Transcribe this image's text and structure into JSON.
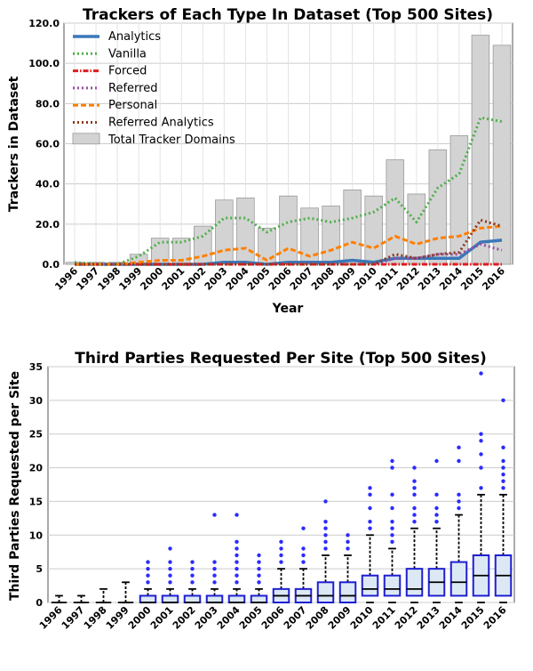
{
  "chart_data": [
    {
      "type": "bar",
      "title": "Trackers of Each Type In Dataset (Top 500 Sites)",
      "xlabel": "Year",
      "ylabel": "Trackers in Dataset",
      "ylim": [
        0,
        120
      ],
      "yticks": [
        "0.0",
        "20.0",
        "40.0",
        "60.0",
        "80.0",
        "100.0",
        "120.0"
      ],
      "categories": [
        "1996",
        "1997",
        "1998",
        "1999",
        "2000",
        "2001",
        "2002",
        "2003",
        "2004",
        "2005",
        "2006",
        "2007",
        "2008",
        "2009",
        "2010",
        "2011",
        "2012",
        "2013",
        "2014",
        "2015",
        "2016"
      ],
      "grid": true,
      "legend_position": "top-left",
      "bars": {
        "name": "Total Tracker Domains",
        "color": "#d3d3d3",
        "values": [
          1,
          1,
          1,
          5,
          13,
          13,
          19,
          32,
          33,
          18,
          34,
          28,
          29,
          37,
          34,
          52,
          35,
          57,
          64,
          114,
          109
        ]
      },
      "series": [
        {
          "name": "Analytics",
          "color": "#3a77b8",
          "dash": "solid",
          "values": [
            0,
            0,
            0,
            0,
            0,
            0,
            0,
            1,
            1,
            0,
            1,
            1,
            1,
            2,
            1,
            3,
            3,
            3,
            3,
            11,
            12
          ]
        },
        {
          "name": "Vanilla",
          "color": "#4daf4a",
          "dash": "dotted",
          "values": [
            1,
            0,
            0,
            4,
            11,
            11,
            14,
            23,
            23,
            16,
            21,
            23,
            21,
            23,
            26,
            33,
            21,
            38,
            45,
            73,
            71
          ]
        },
        {
          "name": "Forced",
          "color": "#e41a1c",
          "dash": "dashdot",
          "values": [
            0,
            0,
            0,
            0,
            0,
            0,
            0,
            0,
            0,
            0,
            0,
            0,
            0,
            0,
            0,
            0,
            0,
            0,
            0,
            0,
            0
          ]
        },
        {
          "name": "Referred",
          "color": "#984ea3",
          "dash": "dotted",
          "values": [
            0,
            0,
            0,
            0,
            0,
            0,
            0,
            0,
            0,
            0,
            0,
            0,
            0,
            0,
            0,
            3,
            3,
            5,
            5,
            10,
            7
          ]
        },
        {
          "name": "Personal",
          "color": "#ff7f00",
          "dash": "dashed",
          "values": [
            0,
            0,
            0,
            1,
            2,
            2,
            4,
            7,
            8,
            2,
            8,
            4,
            7,
            11,
            8,
            14,
            10,
            13,
            14,
            18,
            19
          ]
        },
        {
          "name": "Referred Analytics",
          "color": "#8b3a1e",
          "dash": "dotted",
          "values": [
            0,
            0,
            0,
            0,
            0,
            0,
            0,
            0,
            0,
            0,
            0,
            0,
            0,
            0,
            0,
            5,
            3,
            5,
            6,
            22,
            19
          ]
        }
      ]
    },
    {
      "type": "box",
      "title": "Third Parties Requested Per Site (Top 500 Sites)",
      "xlabel": "",
      "ylabel": "Third Parties Requested per Site",
      "ylim": [
        0,
        35
      ],
      "yticks": [
        "0",
        "5",
        "10",
        "15",
        "20",
        "25",
        "30",
        "35"
      ],
      "categories": [
        "1996",
        "1997",
        "1998",
        "1999",
        "2000",
        "2001",
        "2002",
        "2003",
        "2004",
        "2005",
        "2006",
        "2007",
        "2008",
        "2009",
        "2010",
        "2011",
        "2012",
        "2013",
        "2014",
        "2015",
        "2016"
      ],
      "grid": true,
      "box_color": "#1f1fd2",
      "box_fill": "#dce9f5",
      "outlier_color": "#2b2bff",
      "boxes": [
        {
          "min": 0,
          "q1": 0,
          "median": 0,
          "q3": 0,
          "max": 1,
          "outliers": []
        },
        {
          "min": 0,
          "q1": 0,
          "median": 0,
          "q3": 0,
          "max": 1,
          "outliers": []
        },
        {
          "min": 0,
          "q1": 0,
          "median": 0,
          "q3": 0,
          "max": 2,
          "outliers": []
        },
        {
          "min": 0,
          "q1": 0,
          "median": 0,
          "q3": 0,
          "max": 3,
          "outliers": []
        },
        {
          "min": 0,
          "q1": 0,
          "median": 0,
          "q3": 1,
          "max": 2,
          "outliers": [
            3,
            4,
            5,
            6
          ]
        },
        {
          "min": 0,
          "q1": 0,
          "median": 0,
          "q3": 1,
          "max": 2,
          "outliers": [
            3,
            4,
            5,
            6,
            8
          ]
        },
        {
          "min": 0,
          "q1": 0,
          "median": 0,
          "q3": 1,
          "max": 2,
          "outliers": [
            3,
            4,
            5,
            6
          ]
        },
        {
          "min": 0,
          "q1": 0,
          "median": 0,
          "q3": 1,
          "max": 2,
          "outliers": [
            3,
            4,
            5,
            6,
            13
          ]
        },
        {
          "min": 0,
          "q1": 0,
          "median": 0,
          "q3": 1,
          "max": 2,
          "outliers": [
            3,
            4,
            5,
            6,
            7,
            8,
            9,
            13
          ]
        },
        {
          "min": 0,
          "q1": 0,
          "median": 0,
          "q3": 1,
          "max": 2,
          "outliers": [
            3,
            4,
            5,
            6,
            7
          ]
        },
        {
          "min": 0,
          "q1": 0,
          "median": 1,
          "q3": 2,
          "max": 5,
          "outliers": [
            6,
            7,
            8,
            9
          ]
        },
        {
          "min": 0,
          "q1": 0,
          "median": 1,
          "q3": 2,
          "max": 5,
          "outliers": [
            6,
            7,
            8,
            11
          ]
        },
        {
          "min": 0,
          "q1": 0,
          "median": 1,
          "q3": 3,
          "max": 7,
          "outliers": [
            8,
            9,
            10,
            11,
            12,
            15
          ]
        },
        {
          "min": 0,
          "q1": 0,
          "median": 1,
          "q3": 3,
          "max": 7,
          "outliers": [
            8,
            9,
            10
          ]
        },
        {
          "min": 0,
          "q1": 1,
          "median": 2,
          "q3": 4,
          "max": 10,
          "outliers": [
            11,
            12,
            14,
            16,
            17
          ]
        },
        {
          "min": 0,
          "q1": 1,
          "median": 2,
          "q3": 4,
          "max": 8,
          "outliers": [
            9,
            10,
            11,
            12,
            14,
            16,
            20,
            21
          ]
        },
        {
          "min": 0,
          "q1": 1,
          "median": 2,
          "q3": 5,
          "max": 11,
          "outliers": [
            12,
            13,
            14,
            16,
            17,
            18,
            20
          ]
        },
        {
          "min": 0,
          "q1": 1,
          "median": 3,
          "q3": 5,
          "max": 11,
          "outliers": [
            12,
            13,
            14,
            16,
            21
          ]
        },
        {
          "min": 0,
          "q1": 1,
          "median": 3,
          "q3": 6,
          "max": 13,
          "outliers": [
            14,
            15,
            16,
            21,
            23
          ]
        },
        {
          "min": 0,
          "q1": 1,
          "median": 4,
          "q3": 7,
          "max": 16,
          "outliers": [
            17,
            20,
            22,
            24,
            25,
            34
          ]
        },
        {
          "min": 0,
          "q1": 1,
          "median": 4,
          "q3": 7,
          "max": 16,
          "outliers": [
            17,
            18,
            19,
            20,
            21,
            23,
            30
          ]
        }
      ]
    }
  ]
}
